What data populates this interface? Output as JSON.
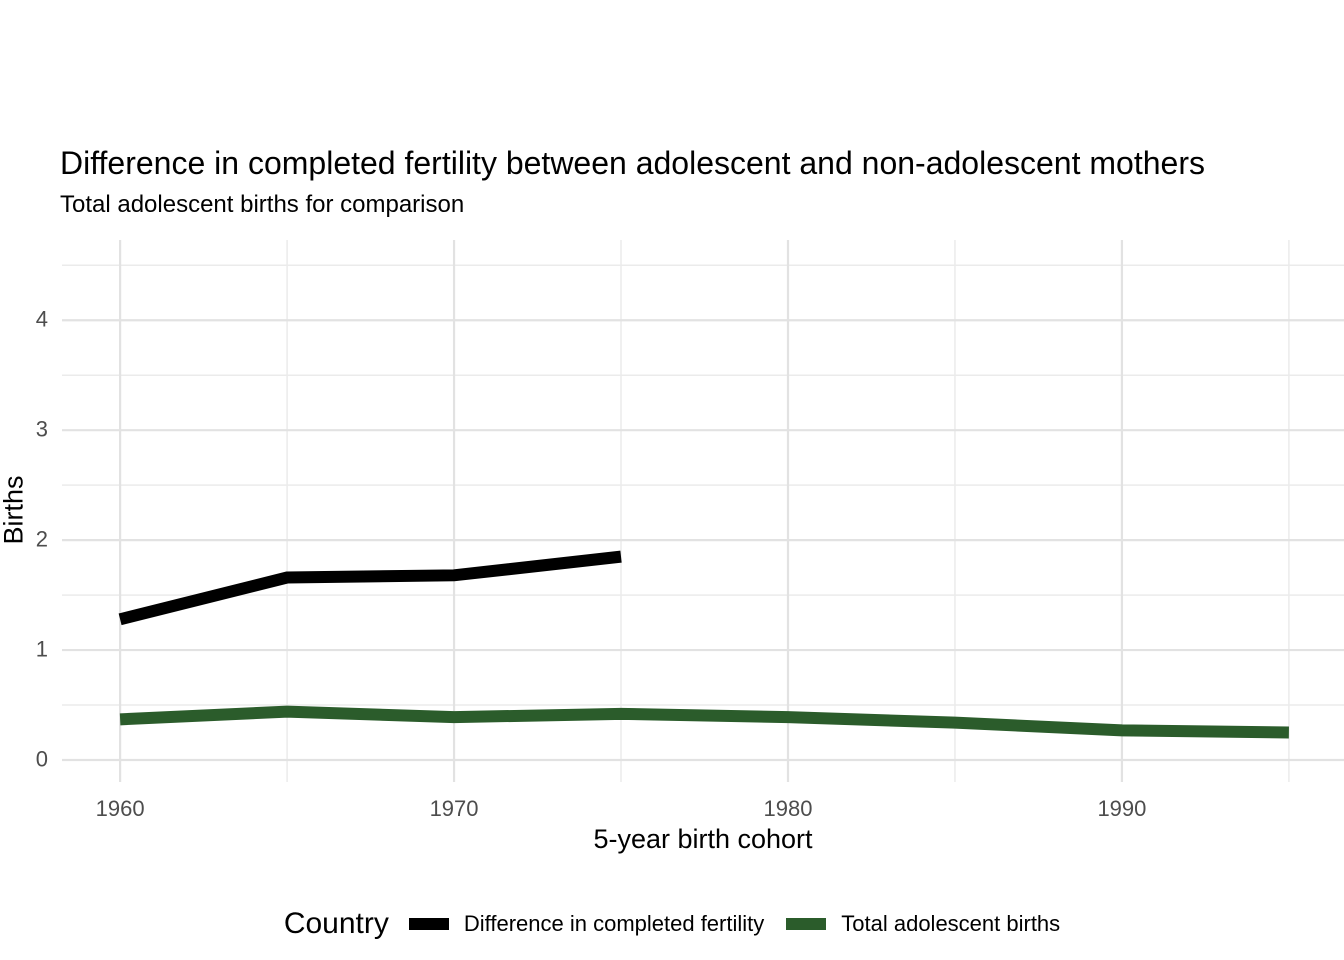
{
  "chart_data": {
    "type": "line",
    "title": "Difference in completed fertility between adolescent and non-adolescent mothers",
    "subtitle": "Total adolescent births for comparison",
    "xlabel": "5-year birth cohort",
    "ylabel": "Births",
    "legend_title": "Country",
    "legend_position": "bottom",
    "grid": true,
    "x_major_ticks": [
      1960,
      1970,
      1980,
      1990
    ],
    "x_minor_ticks": [
      1965,
      1975,
      1985,
      1995
    ],
    "y_major_ticks": [
      0,
      1,
      2,
      3,
      4
    ],
    "y_minor_ticks": [
      0.5,
      1.5,
      2.5,
      3.5,
      4.5
    ],
    "x_domain": [
      1958.26,
      1996.65
    ],
    "y_domain": [
      -0.2,
      4.73
    ],
    "line_width": 12,
    "series": [
      {
        "name": "Difference in completed fertility",
        "color": "#000000",
        "x": [
          1960,
          1965,
          1970,
          1975
        ],
        "y": [
          1.28,
          1.66,
          1.68,
          1.85
        ]
      },
      {
        "name": "Total adolescent births",
        "color": "#2B5C2B",
        "x": [
          1960,
          1965,
          1970,
          1975,
          1980,
          1985,
          1990,
          1995
        ],
        "y": [
          0.37,
          0.44,
          0.39,
          0.42,
          0.39,
          0.34,
          0.27,
          0.25
        ]
      }
    ],
    "colors": {
      "background": "#FFFFFF",
      "text": "#000000",
      "tick_label": "#4D4D4D",
      "grid_major": "#E2E2E2",
      "grid_minor": "#EBEBEB"
    }
  }
}
